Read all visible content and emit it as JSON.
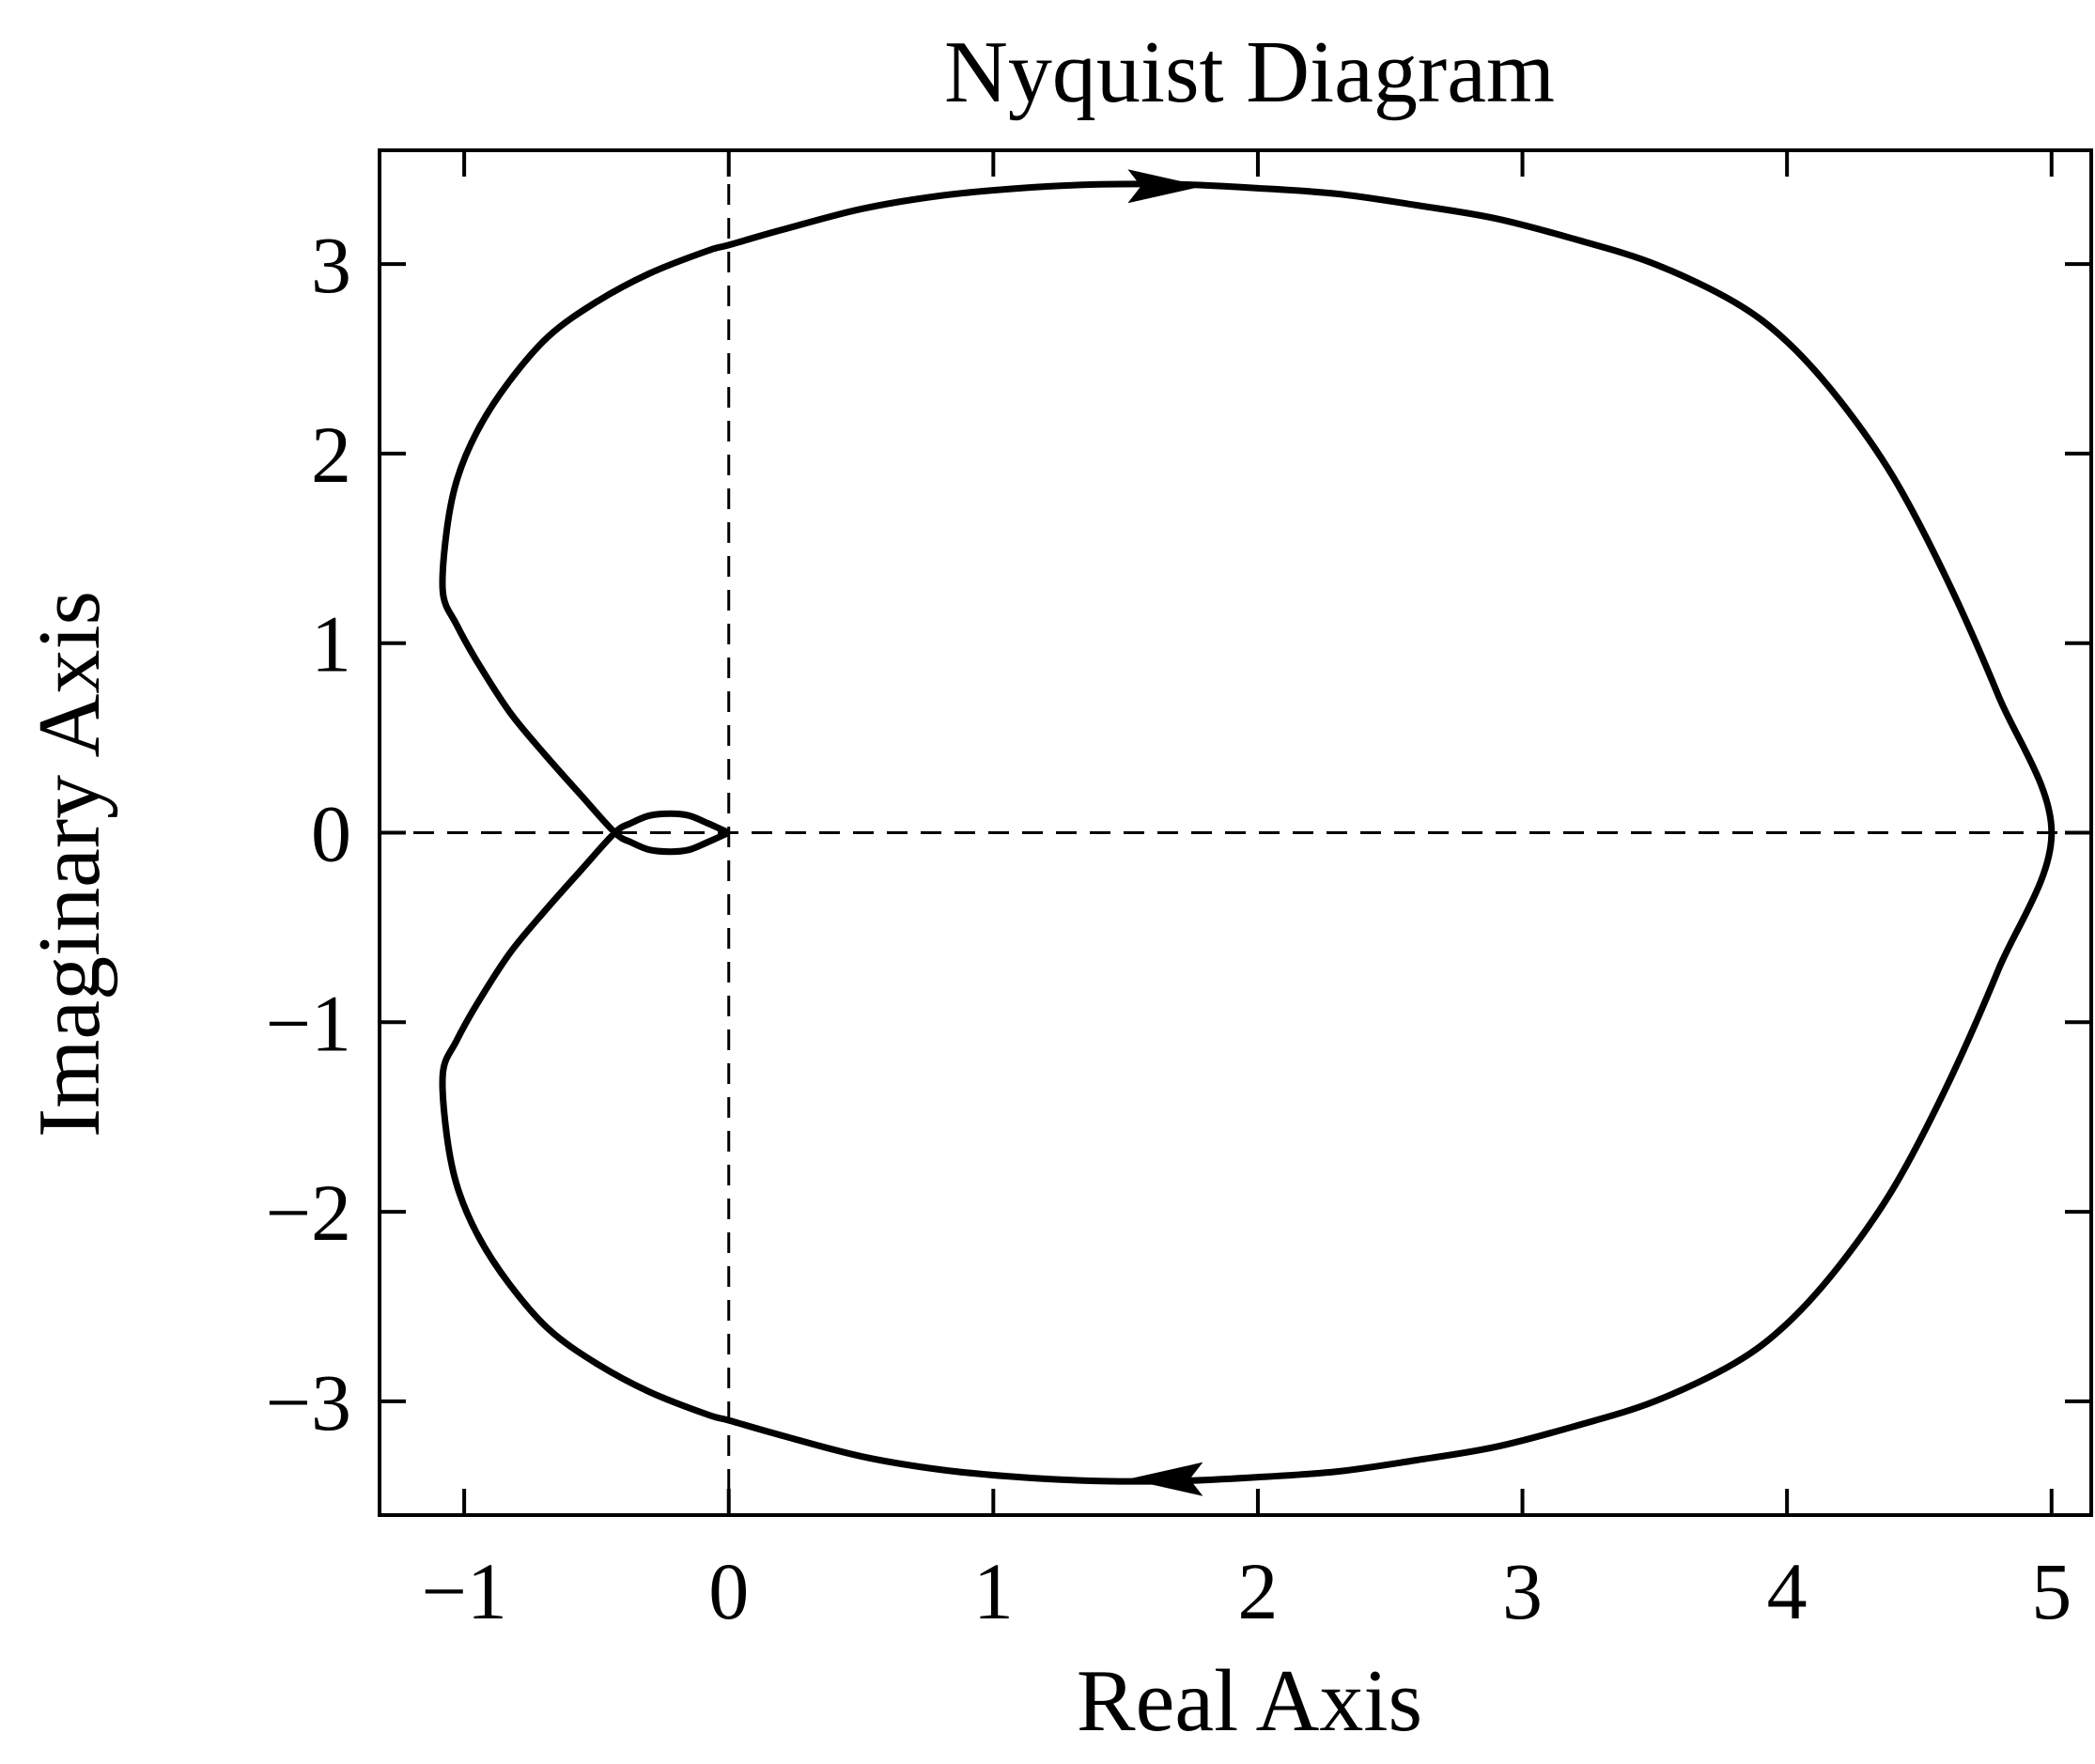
{
  "chart_data": {
    "type": "line",
    "title": "Nyquist Diagram",
    "xlabel": "Real Axis",
    "ylabel": "Imaginary Axis",
    "xlim": [
      -1.32,
      5.15
    ],
    "ylim": [
      -3.6,
      3.6
    ],
    "xticks": [
      -1,
      0,
      1,
      2,
      3,
      4,
      5
    ],
    "yticks": [
      -3,
      -2,
      -1,
      0,
      1,
      2,
      3
    ],
    "xtick_labels": [
      "−1",
      "0",
      "1",
      "2",
      "3",
      "4",
      "5"
    ],
    "ytick_labels": [
      "−3",
      "−2",
      "−1",
      "0",
      "1",
      "2",
      "3"
    ],
    "grid": false,
    "reference_lines": [
      {
        "orientation": "vertical",
        "value": 0,
        "style": "dashed"
      },
      {
        "orientation": "horizontal",
        "value": 0,
        "style": "dashed"
      }
    ],
    "series": [
      {
        "style": "solid",
        "color": "#000000",
        "x": [
          0,
          -0.08,
          -0.15,
          -0.22,
          -0.3,
          -0.37,
          -0.43,
          -0.56,
          -0.7,
          -0.83,
          -0.95,
          -1.03,
          -1.08,
          -1.07,
          -1.03,
          -0.95,
          -0.83,
          -0.68,
          -0.5,
          -0.3,
          -0.08,
          0,
          0.2,
          0.5,
          0.8,
          1.1,
          1.4,
          1.7,
          2.0,
          2.3,
          2.6,
          2.9,
          3.2,
          3.5,
          3.8,
          4.0,
          4.2,
          4.4,
          4.6,
          4.8,
          5.0
        ],
        "y": [
          0,
          -0.05,
          -0.09,
          -0.1,
          -0.09,
          -0.05,
          0,
          0.2,
          0.42,
          0.64,
          0.9,
          1.1,
          1.26,
          1.55,
          1.85,
          2.12,
          2.38,
          2.62,
          2.8,
          2.95,
          3.07,
          3.1,
          3.18,
          3.29,
          3.36,
          3.4,
          3.42,
          3.42,
          3.4,
          3.37,
          3.31,
          3.24,
          3.13,
          3.0,
          2.8,
          2.59,
          2.28,
          1.88,
          1.35,
          0.72,
          0
        ],
        "mirror_x_axis": true
      }
    ],
    "direction_arrows": [
      {
        "x": 1.65,
        "y": 3.41,
        "direction": "right"
      },
      {
        "x": 1.65,
        "y": -3.41,
        "direction": "left"
      }
    ]
  }
}
